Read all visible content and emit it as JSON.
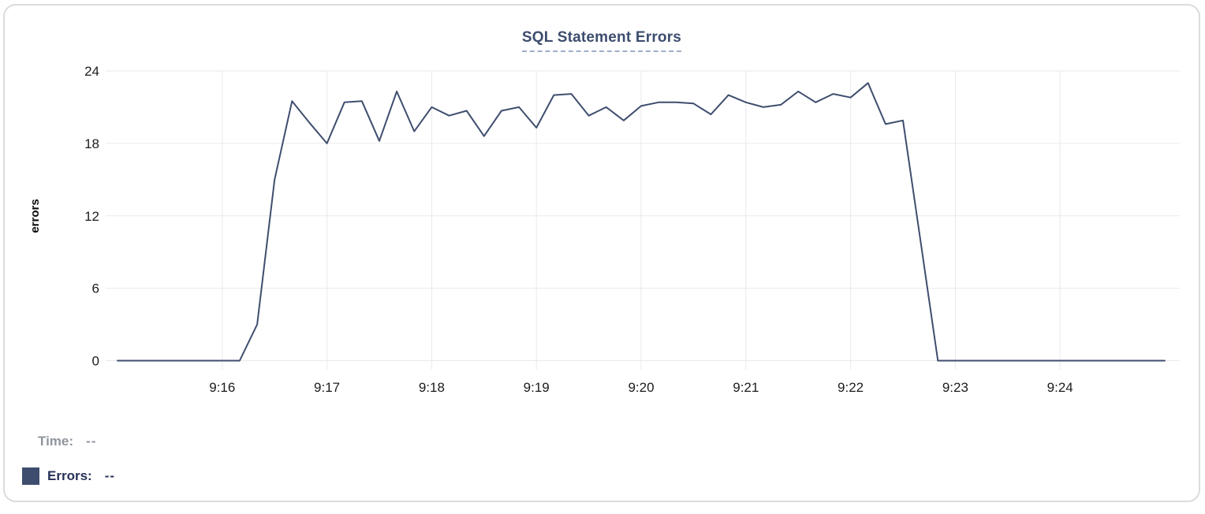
{
  "chart_data": {
    "type": "line",
    "title": "SQL Statement Errors",
    "xlabel": "",
    "ylabel": "errors",
    "ylim": [
      0,
      24
    ],
    "y_ticks": [
      0,
      6,
      12,
      18,
      24
    ],
    "x_ticks": [
      "9:16",
      "9:17",
      "9:18",
      "9:19",
      "9:20",
      "9:21",
      "9:22",
      "9:23",
      "9:24"
    ],
    "x_range": [
      "9:15:00",
      "9:25:00"
    ],
    "interval_seconds": 10,
    "grid": true,
    "legend_position": "bottom-left",
    "series": [
      {
        "name": "Errors",
        "color": "#3f4e6e",
        "start": "9:15:00",
        "values": [
          0,
          0,
          0,
          0,
          0,
          0,
          0,
          0,
          3,
          15,
          21.5,
          19.7,
          18,
          21.4,
          21.5,
          18.2,
          22.3,
          19,
          21,
          20.3,
          20.7,
          18.6,
          20.7,
          21,
          19.3,
          22,
          22.1,
          20.3,
          21,
          19.9,
          21.1,
          21.4,
          21.4,
          21.3,
          20.4,
          22,
          21.4,
          21,
          21.2,
          22.3,
          21.4,
          22.1,
          21.8,
          23,
          19.6,
          19.9,
          10,
          0,
          0,
          0,
          0,
          0,
          0,
          0,
          0,
          0,
          0,
          0,
          0,
          0,
          0
        ]
      }
    ]
  },
  "legend": {
    "time_label": "Time:",
    "time_value": "--",
    "errors_label": "Errors:",
    "errors_value": "--",
    "swatch_color": "#3e4c6d"
  },
  "colors": {
    "line": "#3f4e6e",
    "grid": "#e9eaec",
    "title": "#3d4d6e",
    "title_underline": "#9fb0c7"
  }
}
